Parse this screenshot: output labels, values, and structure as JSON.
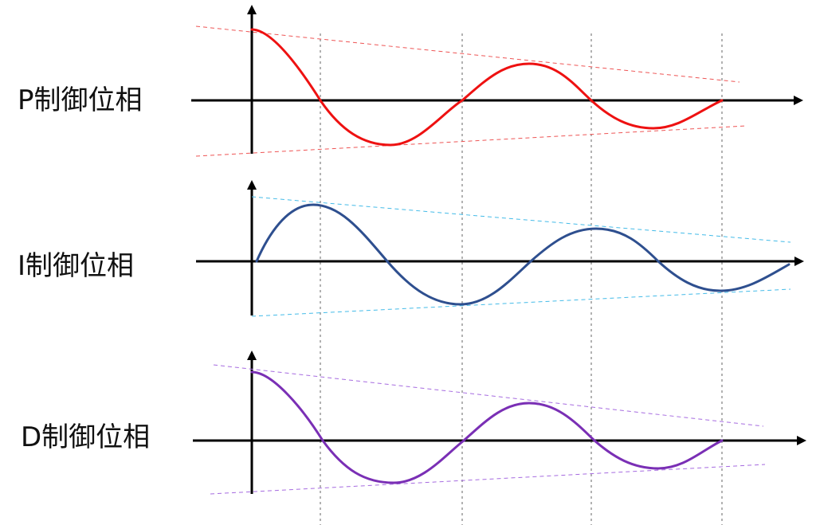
{
  "panels": [
    {
      "label": "P制御位相",
      "wave_color": "#ee1111",
      "envelope_color": "#ee5555",
      "phase": "start-at-peak"
    },
    {
      "label": "I制御位相",
      "wave_color": "#2e4f8f",
      "envelope_color": "#44bbe8",
      "phase": "start-at-zero"
    },
    {
      "label": "D制御位相",
      "wave_color": "#7a2fb5",
      "envelope_color": "#a66be0",
      "phase": "start-at-peak"
    }
  ]
}
